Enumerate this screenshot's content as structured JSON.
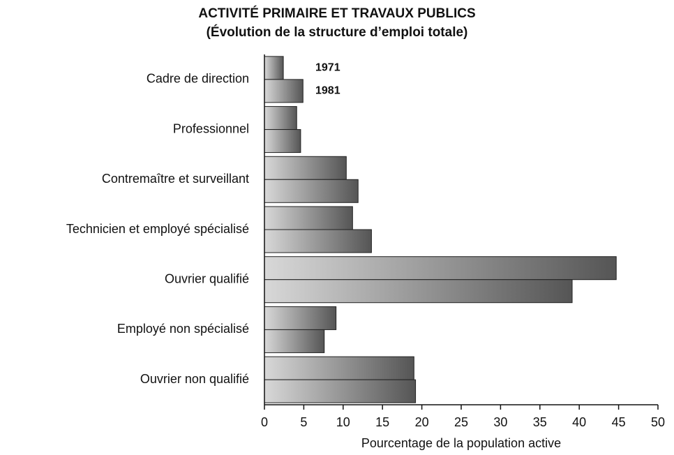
{
  "chart_data": {
    "type": "bar",
    "orientation": "horizontal",
    "title": "ACTIVITÉ PRIMAIRE ET TRAVAUX PUBLICS",
    "subtitle": "(Évolution de la structure d’emploi totale)",
    "x_label": "Pourcentage de la population active",
    "categories": [
      "Cadre de direction",
      "Professionnel",
      "Contremaître et surveillant",
      "Technicien et employé spécialisé",
      "Ouvrier qualifié",
      "Employé non spécialisé",
      "Ouvrier non qualifié"
    ],
    "series": [
      {
        "name": "1971",
        "color": "#555555",
        "values": [
          2.4,
          4.1,
          10.4,
          11.2,
          44.7,
          9.1,
          19.0
        ]
      },
      {
        "name": "1981",
        "color": "#555555",
        "values": [
          4.9,
          4.6,
          11.9,
          13.6,
          39.1,
          7.6,
          19.2
        ]
      }
    ],
    "xlim": [
      0,
      50
    ],
    "xticks": [
      0,
      5,
      10,
      15,
      20,
      25,
      30,
      35,
      40,
      45,
      50
    ]
  }
}
